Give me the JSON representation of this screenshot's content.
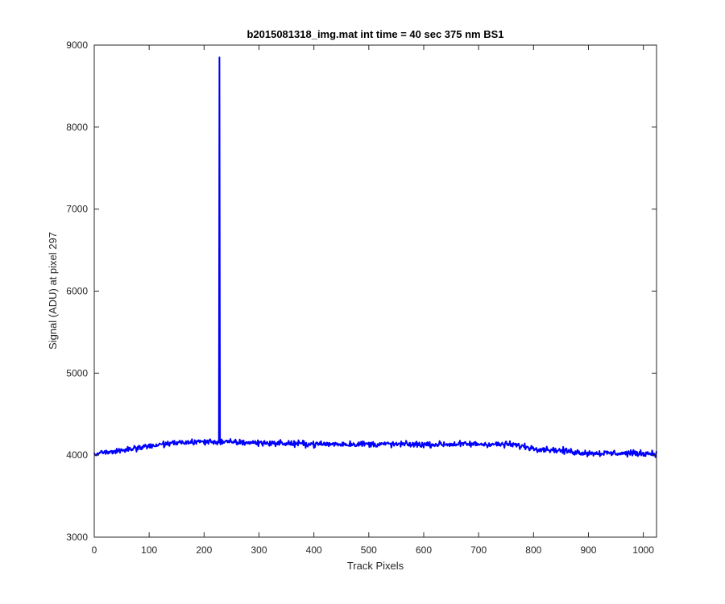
{
  "chart_data": {
    "type": "line",
    "title": "b2015081318_img.mat int time = 40 sec  375 nm BS1",
    "xlabel": "Track Pixels",
    "ylabel": "Signal (ADU) at pixel 297",
    "xlim": [
      0,
      1024
    ],
    "ylim": [
      3000,
      9000
    ],
    "xticks": [
      0,
      100,
      200,
      300,
      400,
      500,
      600,
      700,
      800,
      900,
      1000
    ],
    "yticks": [
      3000,
      4000,
      5000,
      6000,
      7000,
      8000,
      9000
    ],
    "grid": false,
    "legend": "none",
    "series": [
      {
        "color": "#0000ff",
        "baseline": [
          [
            0,
            4020
          ],
          [
            50,
            4060
          ],
          [
            100,
            4110
          ],
          [
            150,
            4150
          ],
          [
            200,
            4165
          ],
          [
            300,
            4150
          ],
          [
            400,
            4135
          ],
          [
            500,
            4135
          ],
          [
            600,
            4130
          ],
          [
            700,
            4135
          ],
          [
            760,
            4130
          ],
          [
            800,
            4085
          ],
          [
            850,
            4055
          ],
          [
            900,
            4025
          ],
          [
            1024,
            4020
          ]
        ],
        "noise_amplitude": 40,
        "spike": {
          "x": 228,
          "y": 8850
        }
      }
    ]
  }
}
